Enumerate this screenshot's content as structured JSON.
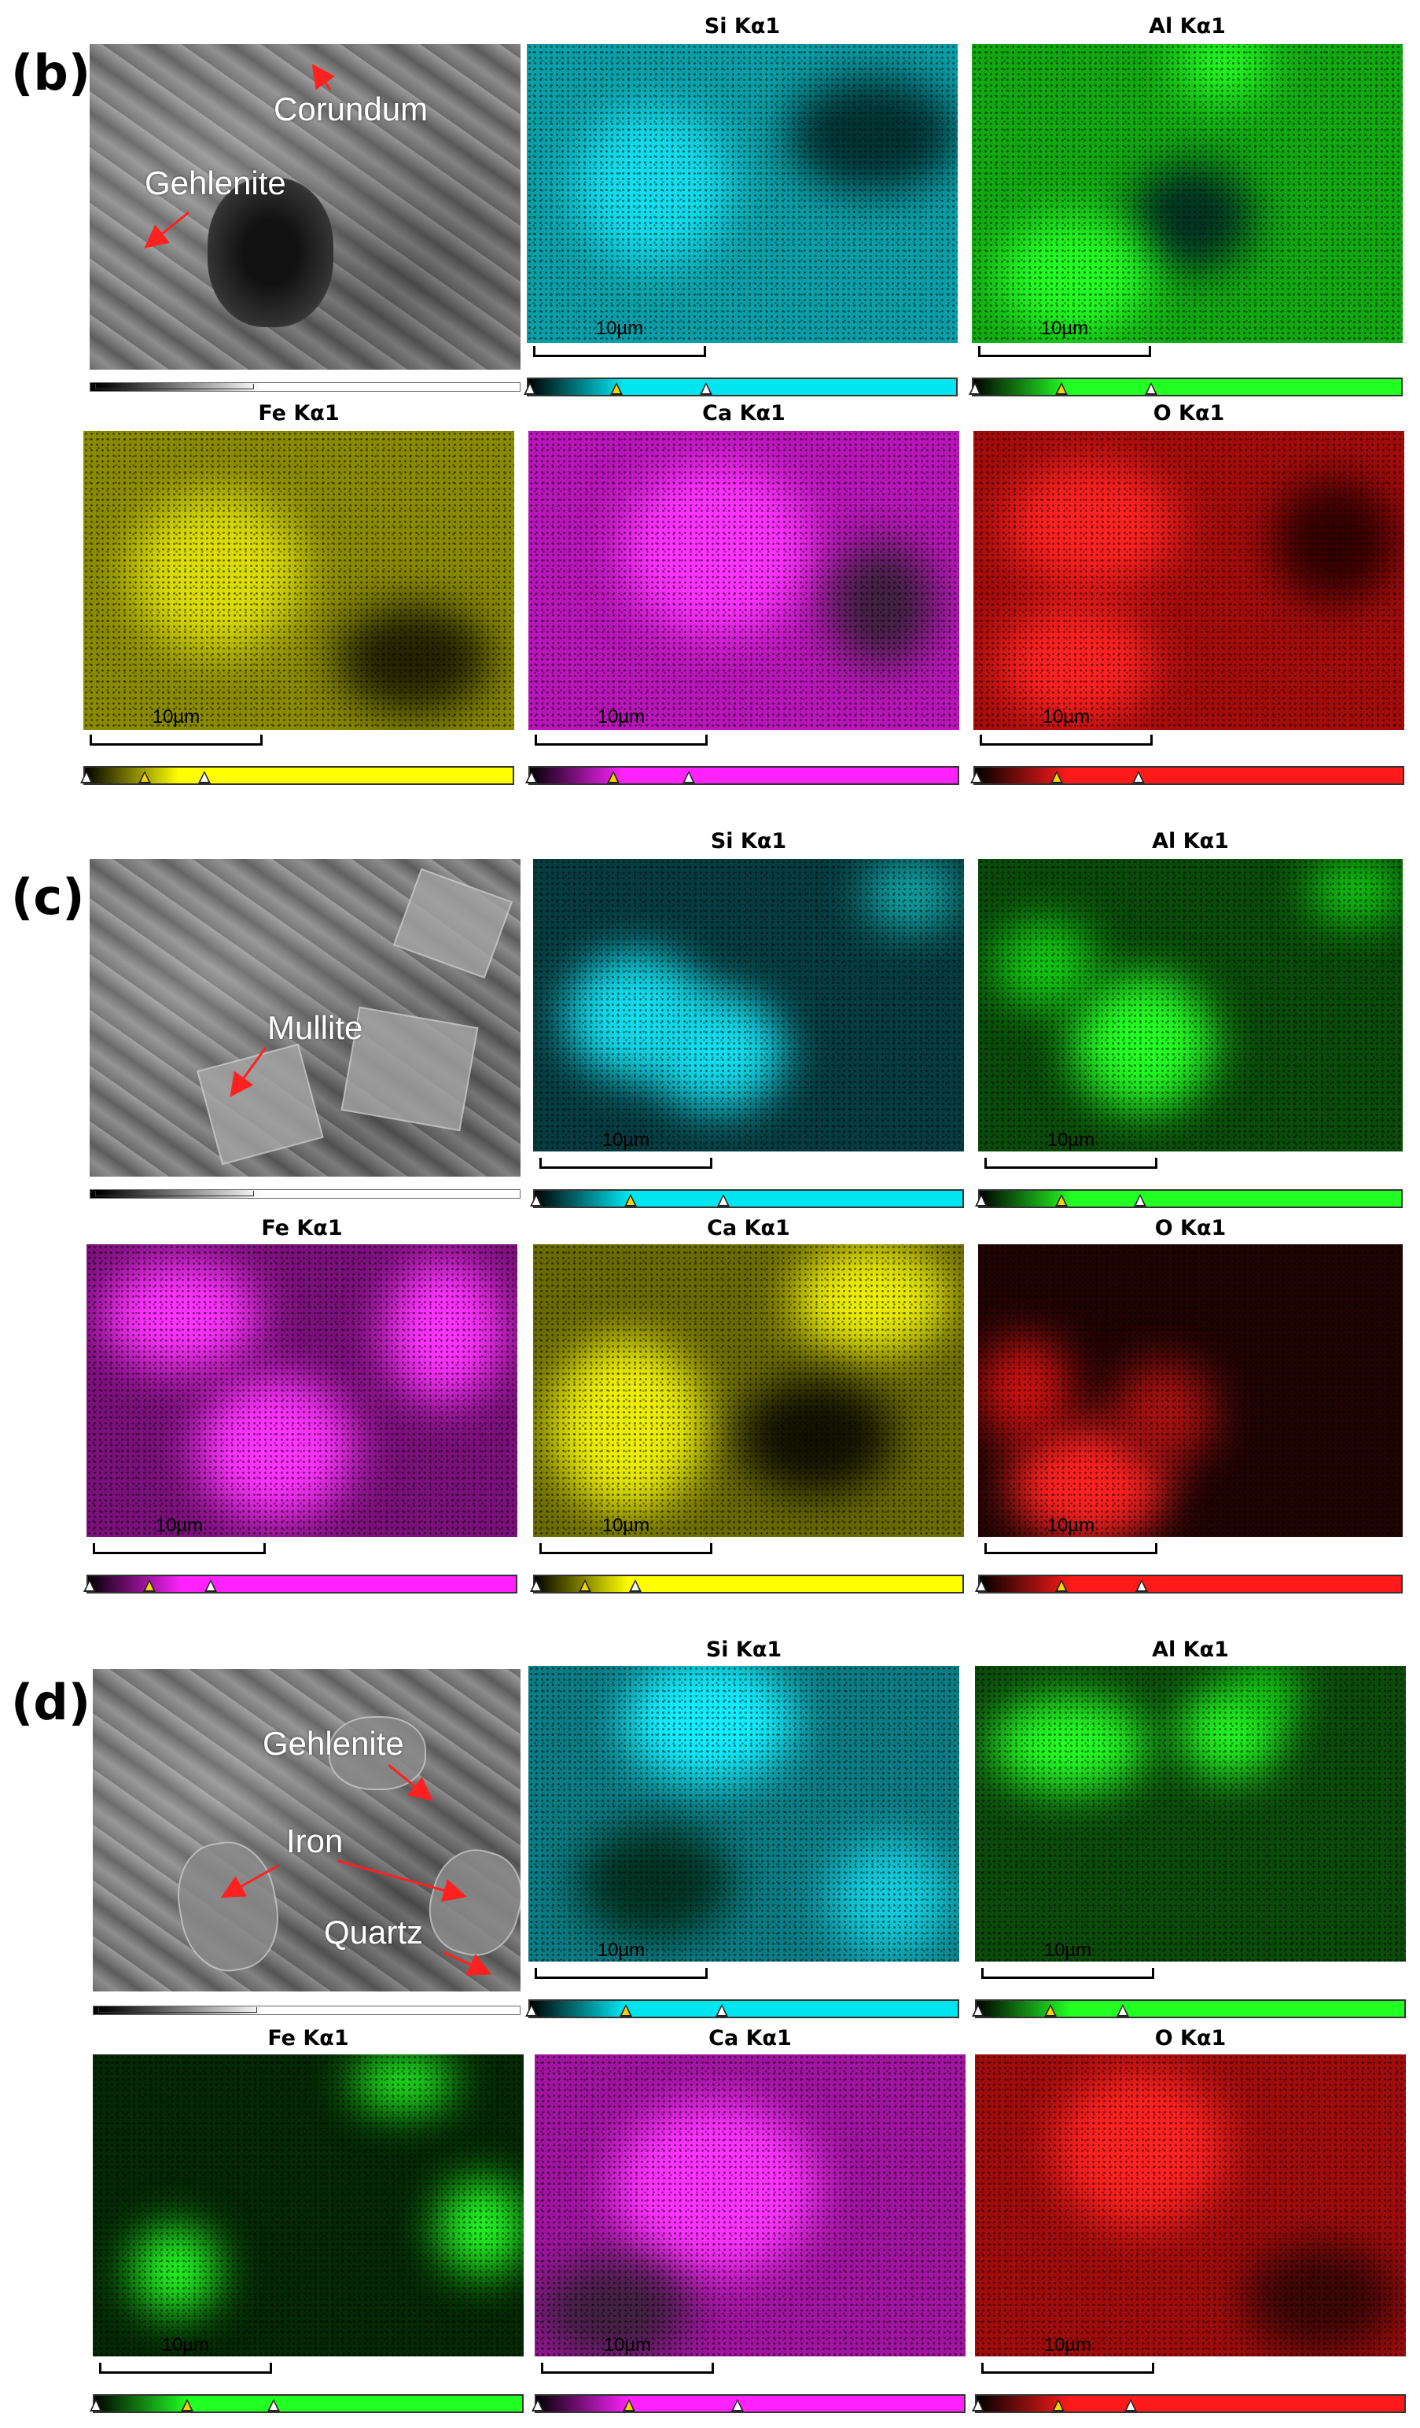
{
  "colors": {
    "si": "#00e5f0",
    "al": "#22ff22",
    "fe_b": "#ffff00",
    "ca_b": "#ff22ff",
    "o": "#ff1a1a",
    "fe_c": "#ff22ff",
    "ca_c": "#ffff00",
    "fe_d": "#22ff22",
    "ca_d": "#ff22ff"
  },
  "panels": {
    "b": {
      "label": "(b)",
      "annotations": [
        "Corundum",
        "Gehlenite"
      ],
      "maps": [
        "Si Kα1",
        "Al Kα1",
        "Fe Kα1",
        "Ca Kα1",
        "O Kα1"
      ],
      "scale": "10µm"
    },
    "c": {
      "label": "(c)",
      "annotations": [
        "Mullite"
      ],
      "maps": [
        "Si Kα1",
        "Al Kα1",
        "Fe Kα1",
        "Ca Kα1",
        "O Kα1"
      ],
      "scale": "10µm"
    },
    "d": {
      "label": "(d)",
      "annotations": [
        "Gehlenite",
        "Iron",
        "Quartz"
      ],
      "maps": [
        "Si Kα1",
        "Al Kα1",
        "Fe Kα1",
        "Ca Kα1",
        "O Kα1"
      ],
      "scale": "10µm"
    }
  }
}
